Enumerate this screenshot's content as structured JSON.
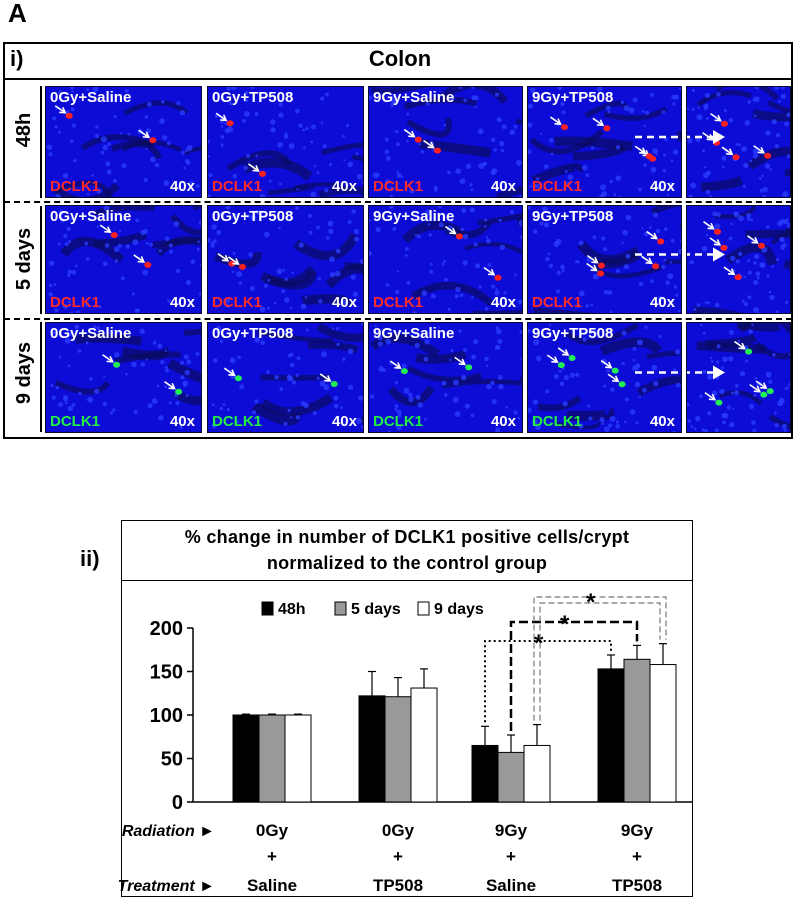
{
  "figure_label": "A",
  "part_i": {
    "label": "i)",
    "title": "Colon",
    "rows": [
      {
        "label": "48h",
        "stain": "DCLK1",
        "stain_color": "#ff2a2a",
        "cell_color": "#ff2020",
        "magnification": "40x",
        "panels": [
          "0Gy+Saline",
          "0Gy+TP508",
          "9Gy+Saline",
          "9Gy+TP508"
        ]
      },
      {
        "label": "5 days",
        "stain": "DCLK1",
        "stain_color": "#ff2a2a",
        "cell_color": "#ff2020",
        "magnification": "40x",
        "panels": [
          "0Gy+Saline",
          "0Gy+TP508",
          "9Gy+Saline",
          "9Gy+TP508"
        ]
      },
      {
        "label": "9 days",
        "stain": "DCLK1",
        "stain_color": "#22ee44",
        "cell_color": "#22ee55",
        "magnification": "40x",
        "panels": [
          "0Gy+Saline",
          "0Gy+TP508",
          "9Gy+Saline",
          "9Gy+TP508"
        ]
      }
    ]
  },
  "part_ii": {
    "label": "ii)",
    "title_line1": "% change in number of DCLK1 positive cells/crypt",
    "title_line2": "normalized to the control group"
  },
  "chart_data": {
    "type": "bar",
    "title": "% change in number of DCLK1 positive cells/crypt normalized to the control group",
    "categories": [
      {
        "radiation": "0Gy",
        "plus": "+",
        "treatment": "Saline"
      },
      {
        "radiation": "0Gy",
        "plus": "+",
        "treatment": "TP508"
      },
      {
        "radiation": "9Gy",
        "plus": "+",
        "treatment": "Saline"
      },
      {
        "radiation": "9Gy",
        "plus": "+",
        "treatment": "TP508"
      }
    ],
    "series": [
      {
        "name": "48h",
        "color": "#000000",
        "values": [
          100,
          122,
          65,
          153
        ],
        "errors": [
          1,
          28,
          22,
          16
        ]
      },
      {
        "name": "5 days",
        "color": "#999999",
        "values": [
          100,
          121,
          57,
          164
        ],
        "errors": [
          1,
          22,
          20,
          16
        ]
      },
      {
        "name": "9 days",
        "color": "#ffffff",
        "values": [
          100,
          131,
          65,
          158
        ],
        "errors": [
          1,
          22,
          24,
          24
        ]
      }
    ],
    "yticks": [
      0,
      50,
      100,
      150,
      200
    ],
    "ylim": [
      0,
      200
    ],
    "row_labels": {
      "radiation": "Radiation ►",
      "treatment": "Treatment ►"
    },
    "significance_marker": "*",
    "significance_brackets": [
      {
        "from_category": 2,
        "to_category": 3,
        "series": "48h",
        "style": "dotted"
      },
      {
        "from_category": 2,
        "to_category": 3,
        "series": "5 days",
        "style": "dashed"
      },
      {
        "from_category": 2,
        "to_category": 3,
        "series": "9 days",
        "style": "double-dashed"
      }
    ],
    "legend_position": "top"
  }
}
